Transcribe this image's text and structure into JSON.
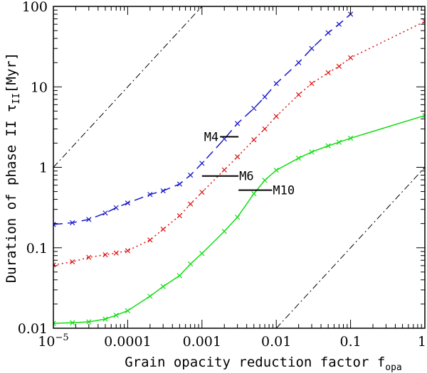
{
  "chart_data": {
    "type": "line",
    "xscale": "log",
    "yscale": "log",
    "xlim": [
      1e-05,
      1
    ],
    "ylim": [
      0.01,
      100
    ],
    "xlabel": "Grain opacity reduction factor f",
    "xlabel_sub": "opa",
    "ylabel": "Duration of phase II τ",
    "ylabel_sub": "II",
    "ylabel_unit": "[Myr]",
    "x_ticks": [
      {
        "value": 1e-05,
        "base": "10",
        "exp": "−5"
      },
      {
        "value": 0.0001,
        "label": "0.0001"
      },
      {
        "value": 0.001,
        "label": "0.001"
      },
      {
        "value": 0.01,
        "label": "0.01"
      },
      {
        "value": 0.1,
        "label": "0.1"
      },
      {
        "value": 1,
        "label": "1"
      }
    ],
    "y_ticks": [
      {
        "value": 0.01,
        "label": "0.01"
      },
      {
        "value": 0.1,
        "label": "0.1"
      },
      {
        "value": 1,
        "label": "1"
      },
      {
        "value": 10,
        "label": "10"
      },
      {
        "value": 100,
        "label": "100"
      }
    ],
    "series": [
      {
        "name": "blue-dashed",
        "color": "#1a1acc",
        "dash": "13,7",
        "marker": "x",
        "points": [
          [
            1e-05,
            0.195
          ],
          [
            1.8e-05,
            0.205
          ],
          [
            3e-05,
            0.225
          ],
          [
            5e-05,
            0.27
          ],
          [
            7e-05,
            0.315
          ],
          [
            0.0001,
            0.36
          ],
          [
            0.0002,
            0.46
          ],
          [
            0.0003,
            0.51
          ],
          [
            0.0005,
            0.62
          ],
          [
            0.0007,
            0.8
          ],
          [
            0.001,
            1.12
          ],
          [
            0.002,
            2.25
          ],
          [
            0.003,
            3.5
          ],
          [
            0.005,
            5.4
          ],
          [
            0.007,
            7.5
          ],
          [
            0.01,
            11
          ],
          [
            0.02,
            20
          ],
          [
            0.03,
            30
          ],
          [
            0.05,
            47
          ],
          [
            0.07,
            60
          ],
          [
            0.1,
            80
          ]
        ]
      },
      {
        "name": "red-dotted",
        "color": "#dd1111",
        "dash": "2,4",
        "marker": "x",
        "points": [
          [
            1e-05,
            0.061
          ],
          [
            1.8e-05,
            0.067
          ],
          [
            3e-05,
            0.076
          ],
          [
            5e-05,
            0.082
          ],
          [
            7e-05,
            0.086
          ],
          [
            0.0001,
            0.092
          ],
          [
            0.0002,
            0.125
          ],
          [
            0.0003,
            0.17
          ],
          [
            0.0005,
            0.25
          ],
          [
            0.0007,
            0.35
          ],
          [
            0.001,
            0.49
          ],
          [
            0.002,
            0.93
          ],
          [
            0.003,
            1.35
          ],
          [
            0.005,
            2.2
          ],
          [
            0.007,
            3.0
          ],
          [
            0.01,
            4.3
          ],
          [
            0.02,
            8.0
          ],
          [
            0.03,
            11
          ],
          [
            0.05,
            15
          ],
          [
            0.07,
            18
          ],
          [
            0.1,
            23
          ],
          [
            1,
            65
          ]
        ]
      },
      {
        "name": "green-solid",
        "color": "#11dd11",
        "dash": "",
        "marker": "x",
        "points": [
          [
            1e-05,
            0.0115
          ],
          [
            1.8e-05,
            0.0117
          ],
          [
            3e-05,
            0.012
          ],
          [
            5e-05,
            0.013
          ],
          [
            7e-05,
            0.0145
          ],
          [
            0.0001,
            0.0165
          ],
          [
            0.0002,
            0.025
          ],
          [
            0.0003,
            0.033
          ],
          [
            0.0005,
            0.045
          ],
          [
            0.0007,
            0.063
          ],
          [
            0.001,
            0.085
          ],
          [
            0.002,
            0.16
          ],
          [
            0.003,
            0.24
          ],
          [
            0.005,
            0.47
          ],
          [
            0.007,
            0.69
          ],
          [
            0.01,
            0.92
          ],
          [
            0.02,
            1.3
          ],
          [
            0.03,
            1.55
          ],
          [
            0.05,
            1.85
          ],
          [
            0.07,
            2.05
          ],
          [
            0.1,
            2.3
          ],
          [
            1,
            4.4
          ]
        ]
      }
    ],
    "reference_lines": [
      {
        "name": "upper-dash-dot",
        "points": [
          [
            1e-05,
            1.0
          ],
          [
            0.001,
            100
          ]
        ]
      },
      {
        "name": "lower-dash-dot",
        "points": [
          [
            0.01,
            0.01
          ],
          [
            1,
            1.0
          ]
        ]
      }
    ],
    "annotations": [
      {
        "label": "M4",
        "x_from": 0.00175,
        "x_to": 0.0031,
        "y": 2.4,
        "text_side": "left"
      },
      {
        "label": "M6",
        "x_from": 0.001,
        "x_to": 0.0031,
        "y": 0.78,
        "text_side": "right"
      },
      {
        "label": "M10",
        "x_from": 0.0031,
        "x_to": 0.0088,
        "y": 0.52,
        "text_side": "right"
      }
    ]
  }
}
